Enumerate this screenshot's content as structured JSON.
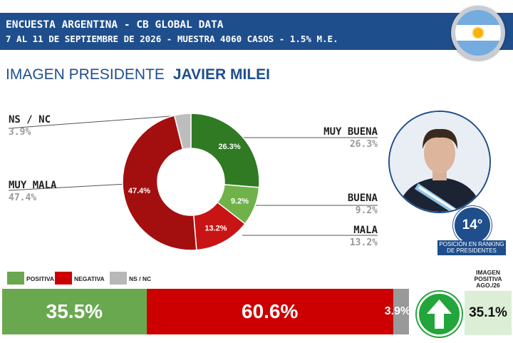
{
  "header": {
    "line1": "ENCUESTA ARGENTINA - CB GLOBAL DATA",
    "line2": "7 AL 11 DE SEPTIEMBRE DE 2026 - MUESTRA 4060 CASOS - 1.5% M.E."
  },
  "title": {
    "prefix": "IMAGEN PRESIDENTE",
    "name": "JAVIER MILEI"
  },
  "colors": {
    "header_bg": "#1f4e8c",
    "muy_buena": "#2f7a22",
    "buena": "#6fb24a",
    "mala": "#c81414",
    "muy_mala": "#a30f0f",
    "ns_nc": "#bdbdbd",
    "positiva": "#6aa84f",
    "negativa": "#cc0000"
  },
  "chart_data": [
    {
      "type": "pie",
      "variant": "donut",
      "labels": [
        "MUY BUENA",
        "BUENA",
        "MALA",
        "MUY MALA",
        "NS / NC"
      ],
      "values": [
        26.3,
        9.2,
        13.2,
        47.4,
        3.9
      ],
      "value_labels": [
        "26.3%",
        "9.2%",
        "13.2%",
        "47.4%",
        "3.9%"
      ],
      "colors": [
        "#2f7a22",
        "#6fb24a",
        "#c81414",
        "#a30f0f",
        "#bdbdbd"
      ]
    },
    {
      "type": "bar",
      "orientation": "horizontal",
      "stacked": true,
      "series": [
        {
          "name": "POSITIVA",
          "value": 35.5,
          "label": "35.5%",
          "color": "#6aa84f"
        },
        {
          "name": "NEGATIVA",
          "value": 60.6,
          "label": "60.6%",
          "color": "#cc0000"
        },
        {
          "name": "NS / NC",
          "value": 3.9,
          "label": "3.9%",
          "color": "#999999"
        }
      ]
    }
  ],
  "ranking": {
    "value": "14°",
    "caption": "POSICIÓN EN RANKING DE PRESIDENTES"
  },
  "positive_image": {
    "header": "IMAGEN POSITIVA AGO./26",
    "value": "35.1%",
    "trend_icon": "arrow-up-icon"
  }
}
